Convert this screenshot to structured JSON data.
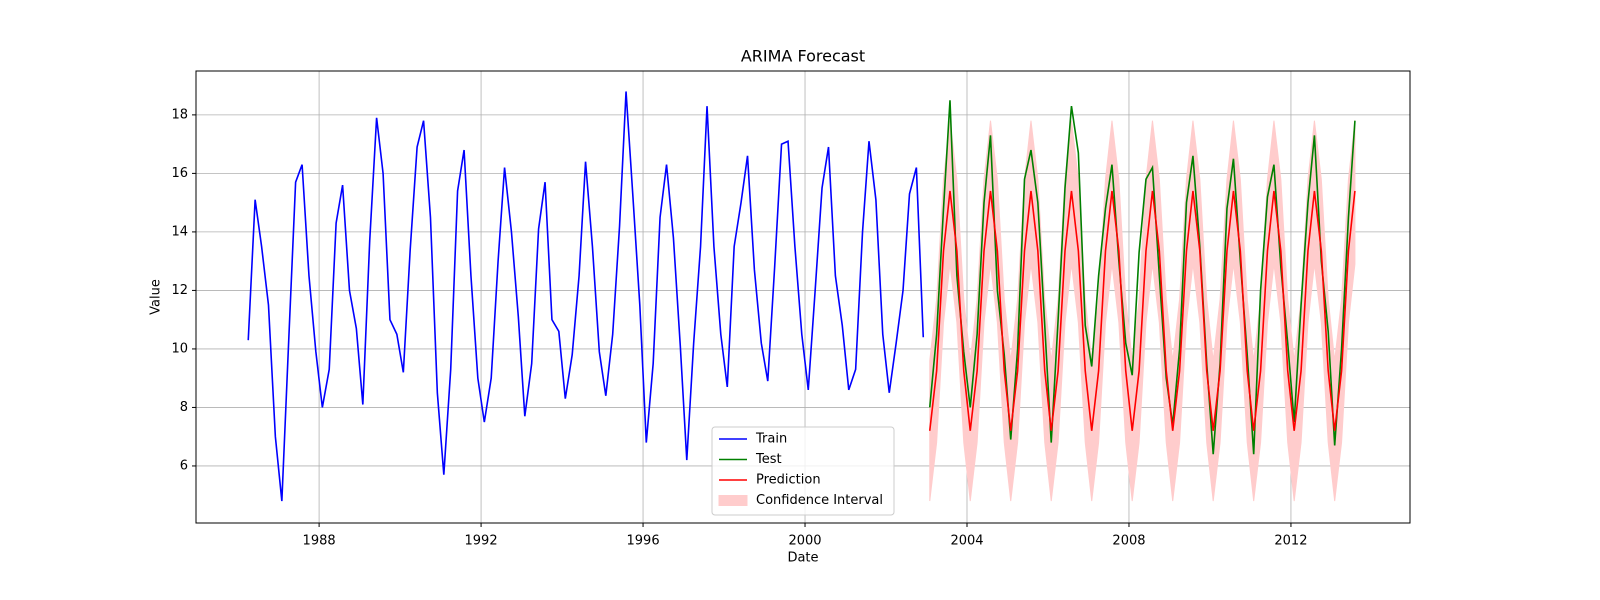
{
  "chart_data": {
    "type": "line",
    "title": "ARIMA Forecast",
    "xlabel": "Date",
    "ylabel": "Value",
    "xlim": [
      1984.96,
      2014.94
    ],
    "ylim": [
      4.05,
      19.5
    ],
    "xticks": [
      1988,
      1992,
      1996,
      2000,
      2004,
      2008,
      2012
    ],
    "yticks": [
      6,
      8,
      10,
      12,
      14,
      16,
      18
    ],
    "grid": true,
    "legend": "lower center",
    "series": [
      {
        "name": "Train",
        "color": "#0000ff",
        "x": [
          1986.25,
          1986.42,
          1986.58,
          1986.75,
          1986.92,
          1987.08,
          1987.25,
          1987.42,
          1987.58,
          1987.75,
          1987.92,
          1988.08,
          1988.25,
          1988.42,
          1988.58,
          1988.75,
          1988.92,
          1989.08,
          1989.25,
          1989.42,
          1989.58,
          1989.75,
          1989.92,
          1990.08,
          1990.25,
          1990.42,
          1990.58,
          1990.75,
          1990.92,
          1991.08,
          1991.25,
          1991.42,
          1991.58,
          1991.75,
          1991.92,
          1992.08,
          1992.25,
          1992.42,
          1992.58,
          1992.75,
          1992.92,
          1993.08,
          1993.25,
          1993.42,
          1993.58,
          1993.75,
          1993.92,
          1994.08,
          1994.25,
          1994.42,
          1994.58,
          1994.75,
          1994.92,
          1995.08,
          1995.25,
          1995.42,
          1995.58,
          1995.75,
          1995.92,
          1996.08,
          1996.25,
          1996.42,
          1996.58,
          1996.75,
          1996.92,
          1997.08,
          1997.25,
          1997.42,
          1997.58,
          1997.75,
          1997.92,
          1998.08,
          1998.25,
          1998.42,
          1998.58,
          1998.75,
          1998.92,
          1999.08,
          1999.25,
          1999.42,
          1999.58,
          1999.75,
          1999.92,
          2000.08,
          2000.25,
          2000.42,
          2000.58,
          2000.75,
          2000.92,
          2001.08,
          2001.25,
          2001.42,
          2001.58,
          2001.75,
          2001.92,
          2002.08,
          2002.25,
          2002.42,
          2002.58,
          2002.75,
          2002.92
        ],
        "values": [
          10.3,
          15.1,
          13.5,
          11.5,
          7.0,
          4.8,
          10.3,
          15.7,
          16.3,
          12.5,
          9.9,
          8.0,
          9.3,
          14.3,
          15.6,
          12.0,
          10.7,
          8.1,
          13.7,
          17.9,
          16.0,
          11.0,
          10.5,
          9.2,
          13.4,
          16.9,
          17.8,
          14.5,
          8.5,
          5.7,
          9.3,
          15.4,
          16.8,
          12.5,
          9.0,
          7.5,
          9.0,
          13.0,
          16.2,
          14.0,
          11.1,
          7.7,
          9.5,
          14.1,
          15.7,
          11.0,
          10.6,
          8.3,
          9.8,
          12.5,
          16.4,
          13.5,
          9.9,
          8.4,
          10.5,
          14.2,
          18.8,
          15.2,
          11.5,
          6.8,
          9.5,
          14.5,
          16.3,
          13.8,
          10.1,
          6.2,
          10.2,
          13.5,
          18.3,
          13.5,
          10.5,
          8.7,
          13.5,
          15.0,
          16.6,
          12.7,
          10.2,
          8.9,
          12.8,
          17.0,
          17.1,
          13.5,
          10.5,
          8.6,
          12.0,
          15.5,
          16.9,
          12.5,
          10.8,
          8.6,
          9.3,
          14.0,
          17.1,
          15.1,
          10.5,
          8.5,
          10.2,
          12.0,
          15.3,
          16.2,
          10.4
        ]
      },
      {
        "name": "Test",
        "color": "#008000",
        "x": [
          2003.08,
          2003.25,
          2003.42,
          2003.58,
          2003.75,
          2003.92,
          2004.08,
          2004.25,
          2004.42,
          2004.58,
          2004.75,
          2004.92,
          2005.08,
          2005.25,
          2005.42,
          2005.58,
          2005.75,
          2005.92,
          2006.08,
          2006.25,
          2006.42,
          2006.58,
          2006.75,
          2006.92,
          2007.08,
          2007.25,
          2007.42,
          2007.58,
          2007.75,
          2007.92,
          2008.08,
          2008.25,
          2008.42,
          2008.58,
          2008.75,
          2008.92,
          2009.08,
          2009.25,
          2009.42,
          2009.58,
          2009.75,
          2009.92,
          2010.08,
          2010.25,
          2010.42,
          2010.58,
          2010.75,
          2010.92,
          2011.08,
          2011.25,
          2011.42,
          2011.58,
          2011.75,
          2011.92,
          2012.08,
          2012.25,
          2012.42,
          2012.58,
          2012.75,
          2012.92,
          2013.08,
          2013.25,
          2013.42,
          2013.58
        ],
        "values": [
          8.0,
          10.5,
          14.8,
          18.5,
          12.5,
          9.9,
          8.0,
          10.5,
          15.0,
          17.3,
          12.0,
          9.8,
          6.9,
          10.0,
          15.8,
          16.8,
          15.0,
          10.8,
          6.8,
          11.0,
          15.5,
          18.3,
          16.7,
          10.8,
          9.4,
          12.5,
          14.8,
          16.3,
          13.0,
          10.2,
          9.1,
          13.3,
          15.8,
          16.2,
          12.5,
          9.0,
          7.4,
          10.0,
          15.0,
          16.6,
          13.5,
          9.5,
          6.4,
          9.5,
          14.8,
          16.5,
          13.0,
          9.8,
          6.4,
          12.0,
          15.2,
          16.3,
          12.8,
          10.2,
          7.5,
          11.5,
          15.0,
          17.3,
          13.0,
          10.6,
          6.7,
          10.0,
          14.5,
          17.8
        ]
      },
      {
        "name": "Prediction",
        "color": "#ff0000",
        "x": [
          2003.08,
          2003.25,
          2003.42,
          2003.58,
          2003.75,
          2003.92,
          2004.08,
          2004.25,
          2004.42,
          2004.58,
          2004.75,
          2004.92,
          2005.08,
          2005.25,
          2005.42,
          2005.58,
          2005.75,
          2005.92,
          2006.08,
          2006.25,
          2006.42,
          2006.58,
          2006.75,
          2006.92,
          2007.08,
          2007.25,
          2007.42,
          2007.58,
          2007.75,
          2007.92,
          2008.08,
          2008.25,
          2008.42,
          2008.58,
          2008.75,
          2008.92,
          2009.08,
          2009.25,
          2009.42,
          2009.58,
          2009.75,
          2009.92,
          2010.08,
          2010.25,
          2010.42,
          2010.58,
          2010.75,
          2010.92,
          2011.08,
          2011.25,
          2011.42,
          2011.58,
          2011.75,
          2011.92,
          2012.08,
          2012.25,
          2012.42,
          2012.58,
          2012.75,
          2012.92,
          2013.08,
          2013.25,
          2013.42,
          2013.58
        ],
        "values": [
          7.2,
          9.25,
          13.35,
          15.4,
          13.35,
          9.25,
          7.2,
          9.25,
          13.35,
          15.4,
          13.35,
          9.25,
          7.2,
          9.25,
          13.35,
          15.4,
          13.35,
          9.25,
          7.2,
          9.25,
          13.35,
          15.4,
          13.35,
          9.25,
          7.2,
          9.25,
          13.35,
          15.4,
          13.35,
          9.25,
          7.2,
          9.25,
          13.35,
          15.4,
          13.35,
          9.25,
          7.2,
          9.25,
          13.35,
          15.4,
          13.35,
          9.25,
          7.2,
          9.25,
          13.35,
          15.4,
          13.35,
          9.25,
          7.2,
          9.25,
          13.35,
          15.4,
          13.35,
          9.25,
          7.2,
          9.25,
          13.35,
          15.4,
          13.35,
          9.25,
          7.2,
          9.25,
          13.35,
          15.4
        ]
      },
      {
        "name": "Confidence Interval",
        "color": "#ffcccc",
        "type": "band",
        "x": [
          2003.08,
          2003.25,
          2003.42,
          2003.58,
          2003.75,
          2003.92,
          2004.08,
          2004.25,
          2004.42,
          2004.58,
          2004.75,
          2004.92,
          2005.08,
          2005.25,
          2005.42,
          2005.58,
          2005.75,
          2005.92,
          2006.08,
          2006.25,
          2006.42,
          2006.58,
          2006.75,
          2006.92,
          2007.08,
          2007.25,
          2007.42,
          2007.58,
          2007.75,
          2007.92,
          2008.08,
          2008.25,
          2008.42,
          2008.58,
          2008.75,
          2008.92,
          2009.08,
          2009.25,
          2009.42,
          2009.58,
          2009.75,
          2009.92,
          2010.08,
          2010.25,
          2010.42,
          2010.58,
          2010.75,
          2010.92,
          2011.08,
          2011.25,
          2011.42,
          2011.58,
          2011.75,
          2011.92,
          2012.08,
          2012.25,
          2012.42,
          2012.58,
          2012.75,
          2012.92,
          2013.08,
          2013.25,
          2013.42,
          2013.58
        ],
        "lower": [
          4.8,
          6.8,
          10.9,
          12.9,
          10.9,
          6.8,
          4.8,
          6.8,
          10.9,
          12.9,
          10.9,
          6.8,
          4.8,
          6.8,
          10.9,
          12.9,
          10.9,
          6.8,
          4.8,
          6.8,
          10.9,
          12.9,
          10.9,
          6.8,
          4.8,
          6.8,
          10.9,
          12.9,
          10.9,
          6.8,
          4.8,
          6.8,
          10.9,
          12.9,
          10.9,
          6.8,
          4.8,
          6.8,
          10.9,
          12.9,
          10.9,
          6.8,
          4.8,
          6.8,
          10.9,
          12.9,
          10.9,
          6.8,
          4.8,
          6.8,
          10.9,
          12.9,
          10.9,
          6.8,
          4.8,
          6.8,
          10.9,
          12.9,
          10.9,
          6.8,
          4.8,
          6.8,
          10.9,
          12.9
        ],
        "upper": [
          9.6,
          11.7,
          15.8,
          17.8,
          15.8,
          11.7,
          9.6,
          11.7,
          15.8,
          17.8,
          15.8,
          11.7,
          9.6,
          11.7,
          15.8,
          17.8,
          15.8,
          11.7,
          9.6,
          11.7,
          15.8,
          17.8,
          15.8,
          11.7,
          9.6,
          11.7,
          15.8,
          17.8,
          15.8,
          11.7,
          9.6,
          11.7,
          15.8,
          17.8,
          15.8,
          11.7,
          9.6,
          11.7,
          15.8,
          17.8,
          15.8,
          11.7,
          9.6,
          11.7,
          15.8,
          17.8,
          15.8,
          11.7,
          9.6,
          11.7,
          15.8,
          17.8,
          15.8,
          11.7,
          9.6,
          11.7,
          15.8,
          17.8,
          15.8,
          11.7,
          9.6,
          11.7,
          15.8,
          17.8
        ]
      }
    ]
  }
}
